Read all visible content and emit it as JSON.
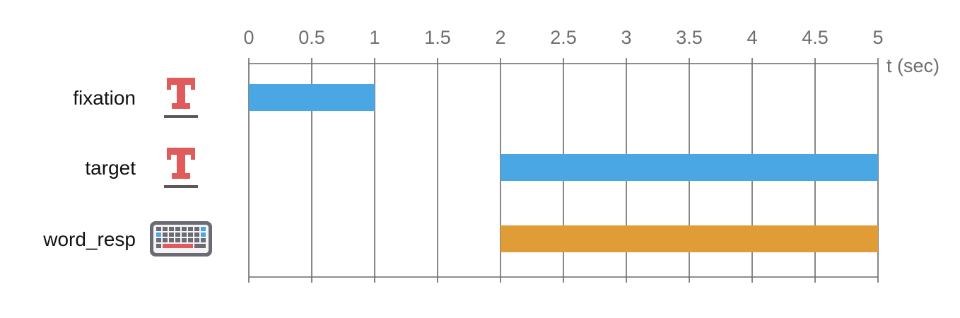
{
  "chart_data": {
    "type": "bar",
    "subtype": "timeline",
    "xlabel": "t (sec)",
    "xlim": [
      0,
      5
    ],
    "xticks": [
      0,
      0.5,
      1,
      1.5,
      2,
      2.5,
      3,
      3.5,
      4,
      4.5,
      5
    ],
    "xtick_labels": [
      "0",
      "0.5",
      "1",
      "1.5",
      "2",
      "2.5",
      "3",
      "3.5",
      "4",
      "4.5",
      "5"
    ],
    "grid": true,
    "components": [
      {
        "name": "fixation",
        "icon": "text-icon",
        "start": 0,
        "end": 1,
        "color": "#4ba7e3"
      },
      {
        "name": "target",
        "icon": "text-icon",
        "start": 2,
        "end": 5,
        "color": "#4ba7e3"
      },
      {
        "name": "word_resp",
        "icon": "keyboard-icon",
        "start": 2,
        "end": 5,
        "color": "#e09c36"
      }
    ]
  },
  "colors": {
    "text_icon": "#e05b5b",
    "keyboard_body": "#6b6b73",
    "keyboard_key": "#d8d8dc",
    "keyboard_blue": "#4ba7e3",
    "keyboard_red": "#e05b5b"
  }
}
